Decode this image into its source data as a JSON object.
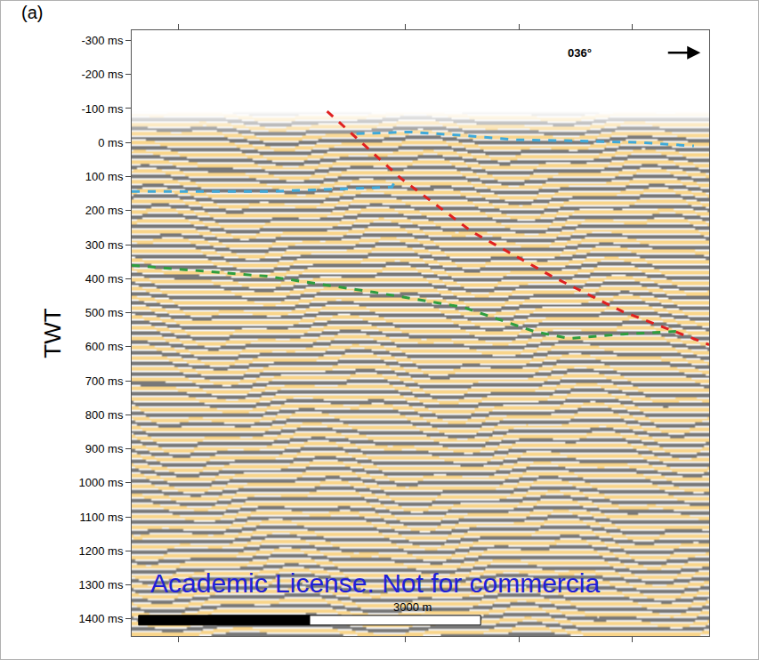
{
  "chart_data": {
    "type": "line",
    "panel": "(a)",
    "yaxis_title": "TWT",
    "xlim": [
      0,
      5065
    ],
    "xticks": [
      413,
      2400,
      3397,
      4386
    ],
    "tick_labels": "y",
    "ylim": [
      1450,
      -330
    ],
    "yticks": [
      {
        "value": -300,
        "label": "-300 ms"
      },
      {
        "value": -200,
        "label": "-200 ms"
      },
      {
        "value": -100,
        "label": "-100 ms"
      },
      {
        "value": 0,
        "label": "0 ms"
      },
      {
        "value": 100,
        "label": "100 ms"
      },
      {
        "value": 200,
        "label": "200 ms"
      },
      {
        "value": 300,
        "label": "300 ms"
      },
      {
        "value": 400,
        "label": "400 ms"
      },
      {
        "value": 500,
        "label": "500 ms"
      },
      {
        "value": 600,
        "label": "600 ms"
      },
      {
        "value": 700,
        "label": "700 ms"
      },
      {
        "value": 800,
        "label": "800 ms"
      },
      {
        "value": 900,
        "label": "900 ms"
      },
      {
        "value": 1000,
        "label": "1000 ms"
      },
      {
        "value": 1100,
        "label": "1100 ms"
      },
      {
        "value": 1200,
        "label": "1200 ms"
      },
      {
        "value": 1300,
        "label": "1300 ms"
      },
      {
        "value": 1400,
        "label": "1400 ms"
      }
    ],
    "grid": false,
    "series": [
      {
        "color": "#3fa9d9",
        "line_style": "dash",
        "x": [
          0,
          1192,
          2283,
          2321
        ],
        "values": [
          144,
          144,
          131,
          105
        ]
      },
      {
        "color": "#3fa9d9",
        "line_style": "dash",
        "x": [
          1971,
          2438,
          2906,
          3373,
          3918,
          4464,
          4931
        ],
        "values": [
          -26,
          -31,
          -21,
          -8,
          -5,
          0,
          10
        ]
      },
      {
        "color": "#2e9e3e",
        "line_style": "dash",
        "x": [
          0,
          1192,
          2127,
          2906,
          3529,
          3840,
          4308,
          4775
        ],
        "values": [
          361,
          393,
          440,
          484,
          555,
          576,
          563,
          555
        ]
      },
      {
        "color": "#e02020",
        "line_style": "dash",
        "x": [
          1714,
          2360,
          2984,
          3685,
          4308,
          5065
        ],
        "values": [
          -92,
          105,
          262,
          393,
          497,
          594
        ]
      }
    ],
    "annotations": [
      "Academic License. Not for commercia"
    ],
    "north_arrow": {
      "label": "036°"
    },
    "scale_bar": {
      "label": "3000 m",
      "length": 3000
    }
  }
}
